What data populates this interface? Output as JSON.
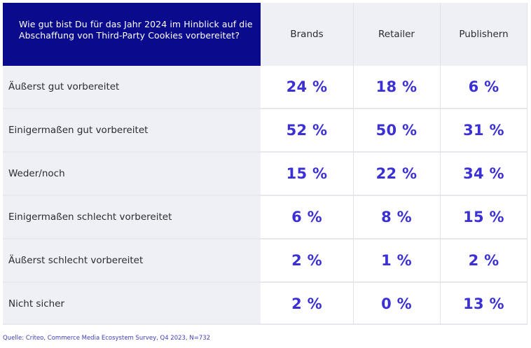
{
  "chart_data": {
    "type": "table",
    "question": "Wie gut bist Du für das Jahr 2024 im Hinblick auf die Abschaffung von Third-Party Cookies vorbereitet?",
    "columns": [
      "Brands",
      "Retailer",
      "Publishern"
    ],
    "rows": [
      {
        "label": "Äußerst gut vorbereitet",
        "values": [
          "24 %",
          "18 %",
          "6 %"
        ]
      },
      {
        "label": "Einigermaßen gut vorbereitet",
        "values": [
          "52 %",
          "50 %",
          "31 %"
        ]
      },
      {
        "label": "Weder/noch",
        "values": [
          "15 %",
          "22 %",
          "34 %"
        ]
      },
      {
        "label": "Einigermaßen schlecht vorbereitet",
        "values": [
          "6 %",
          "8 %",
          "15 %"
        ]
      },
      {
        "label": "Äußerst schlecht vorbereitet",
        "values": [
          "2 %",
          "1 %",
          "2 %"
        ]
      },
      {
        "label": "Nicht sicher",
        "values": [
          "2 %",
          "0 %",
          "13 %"
        ]
      }
    ],
    "numeric_values": {
      "Brands": [
        24,
        52,
        15,
        6,
        2,
        2
      ],
      "Retailer": [
        18,
        50,
        22,
        8,
        1,
        0
      ],
      "Publishern": [
        6,
        31,
        34,
        15,
        2,
        13
      ]
    },
    "source": "Quelle: Criteo, Commerce Media Ecosystem Survey, Q4 2023, N=732"
  },
  "colors": {
    "header_bg": "#0a0a8c",
    "value_text": "#3b2fd6",
    "label_bg": "#eef0f5"
  }
}
